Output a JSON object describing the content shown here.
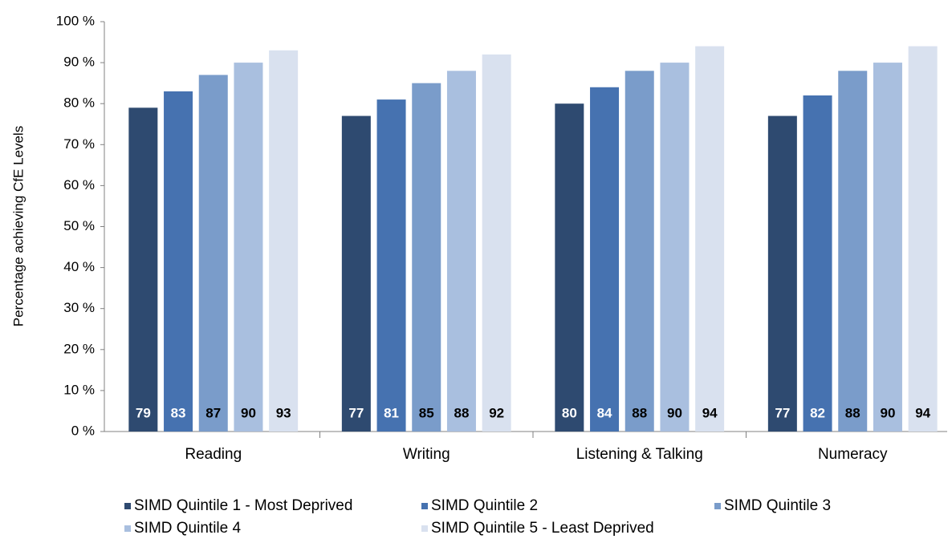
{
  "chart_data": {
    "type": "bar",
    "y_label": "Percentage achieving CfE Levels",
    "categories": [
      "Reading",
      "Writing",
      "Listening & Talking",
      "Numeracy"
    ],
    "series": [
      {
        "name": "SIMD Quintile 1 - Most Deprived",
        "color": "#2e4a70",
        "values": [
          79,
          77,
          80,
          77
        ]
      },
      {
        "name": "SIMD Quintile 2",
        "color": "#4672b0",
        "values": [
          83,
          81,
          84,
          82
        ]
      },
      {
        "name": "SIMD Quintile 3",
        "color": "#7a9cca",
        "values": [
          87,
          85,
          88,
          88
        ]
      },
      {
        "name": "SIMD Quintile 4",
        "color": "#a9bfdf",
        "values": [
          90,
          88,
          90,
          90
        ]
      },
      {
        "name": "SIMD Quintile 5 - Least Deprived",
        "color": "#d9e1ef",
        "values": [
          93,
          92,
          94,
          94
        ]
      }
    ],
    "ylim": [
      0,
      100
    ],
    "yticks": [
      {
        "value": 0,
        "label": "0 %"
      },
      {
        "value": 10,
        "label": "10 %"
      },
      {
        "value": 20,
        "label": "20 %"
      },
      {
        "value": 30,
        "label": "30 %"
      },
      {
        "value": 40,
        "label": "40 %"
      },
      {
        "value": 50,
        "label": "50 %"
      },
      {
        "value": 60,
        "label": "60 %"
      },
      {
        "value": 70,
        "label": "70 %"
      },
      {
        "value": 80,
        "label": "80 %"
      },
      {
        "value": 90,
        "label": "90 %"
      },
      {
        "value": 100,
        "label": "100 %"
      }
    ],
    "grid": false,
    "legend": "bottom"
  }
}
